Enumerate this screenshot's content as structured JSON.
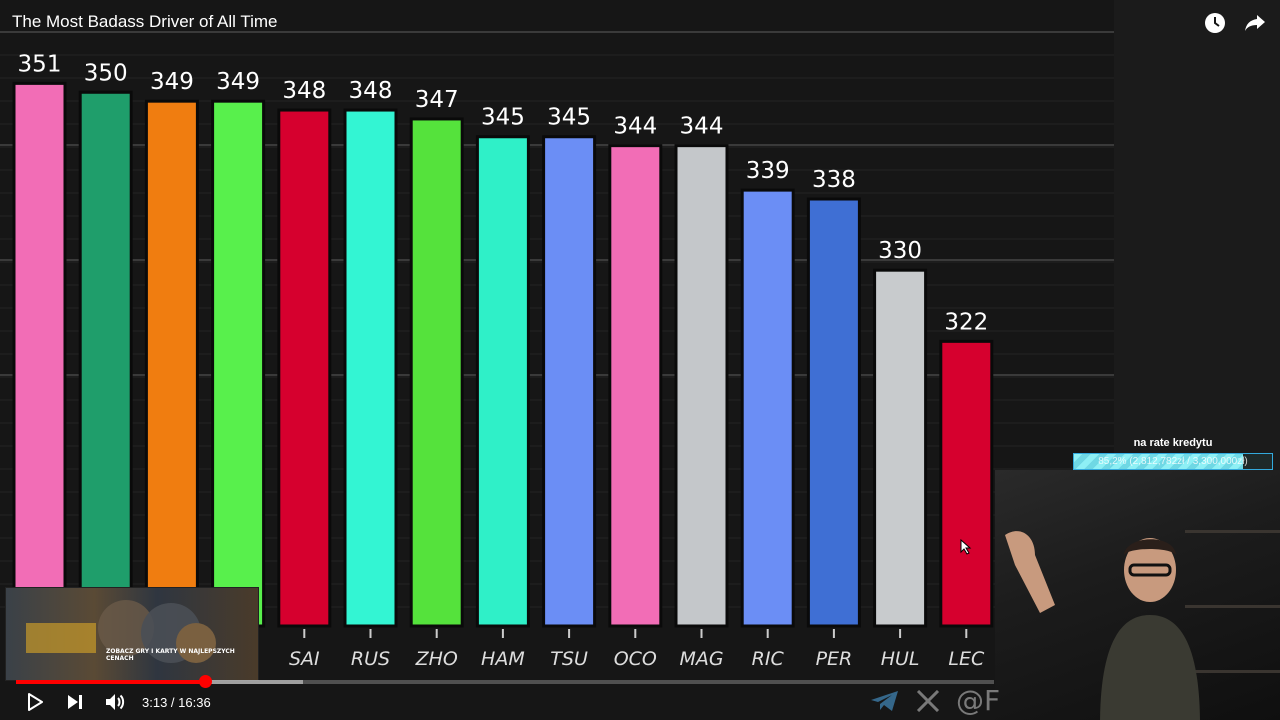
{
  "video": {
    "title": "The Most Badass Driver of All Time",
    "current_time": "3:13",
    "duration": "16:36",
    "time_display": "3:13 / 16:36",
    "progress": 0.1937,
    "buffered": 0.293
  },
  "icons": {
    "watch_later": "clock-icon",
    "share": "share-icon",
    "play": "play-icon",
    "next": "next-icon",
    "volume": "volume-icon",
    "telegram": "telegram-icon",
    "x": "x-logo-icon"
  },
  "watermark_corner": "@F",
  "overlay": {
    "label": "na rate kredytu",
    "progress_text": "85,2% (2,812,782zł / 3,300,000zł)",
    "progress_fraction": 0.852
  },
  "ad": {
    "text": "ZOBACZ GRY I KARTY W NAJLEPSZYCH CENACH"
  },
  "chart_data": {
    "type": "bar",
    "title": "",
    "xlabel": "",
    "ylabel": "",
    "categories": [
      "",
      "",
      "",
      "",
      "SAI",
      "RUS",
      "ZHO",
      "HAM",
      "TSU",
      "OCO",
      "MAG",
      "RIC",
      "PER",
      "HUL",
      "LEC"
    ],
    "values": [
      351,
      350,
      349,
      349,
      348,
      348,
      347,
      345,
      345,
      344,
      344,
      339,
      338,
      330,
      322
    ],
    "colors": [
      "#f26db6",
      "#1f9e6b",
      "#f07d10",
      "#58f04c",
      "#d6002e",
      "#33f5d3",
      "#55e23c",
      "#2ff0c8",
      "#6b8ef5",
      "#f26db6",
      "#c4c7ca",
      "#6b8ef5",
      "#3f6fd4",
      "#c8cbcd",
      "#d6002e"
    ],
    "grid": true,
    "ylim": [
      290,
      357
    ]
  }
}
